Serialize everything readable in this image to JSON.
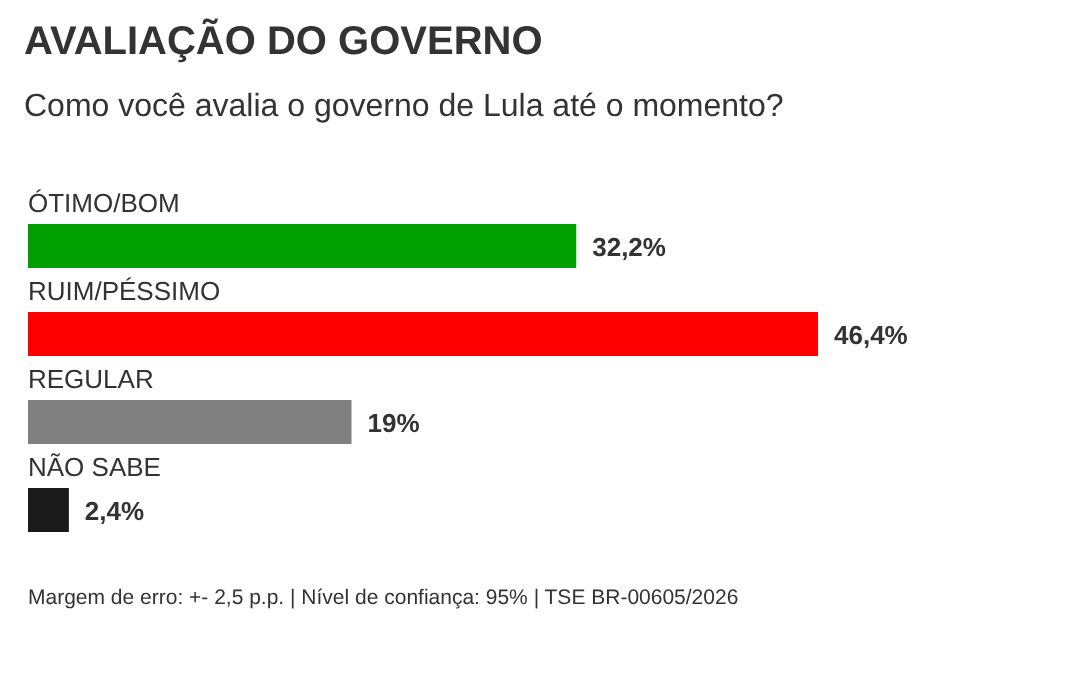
{
  "chart_data": {
    "type": "bar",
    "orientation": "horizontal",
    "title": "AVALIAÇÃO DO GOVERNO",
    "subtitle": "Como você avalia o governo de Lula até o momento?",
    "categories": [
      "ÓTIMO/BOM",
      "RUIM/PÉSSIMO",
      "REGULAR",
      "NÃO SABE"
    ],
    "values": [
      32.2,
      46.4,
      19,
      2.4
    ],
    "colors": [
      "#00a000",
      "#ff0000",
      "#808080",
      "#1a1a1a"
    ],
    "value_labels": [
      "32,2%",
      "46,4%",
      "19%",
      "2,4%"
    ],
    "annotations": [
      "Margem de erro: +- 2,5 p.p. | Nível de confiança: 95% | TSE BR-00605/2026"
    ]
  }
}
